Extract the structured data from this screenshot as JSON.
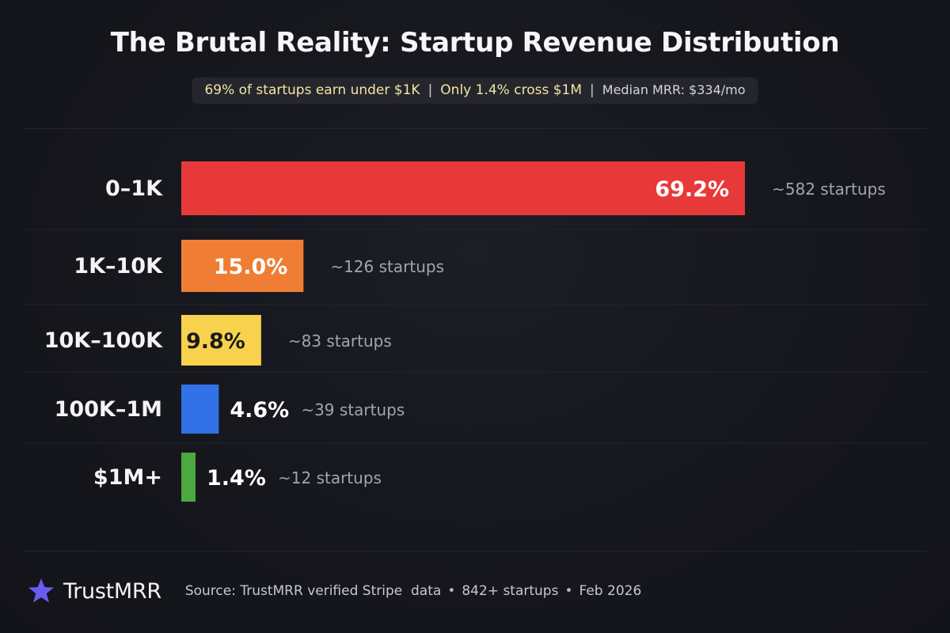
{
  "header": {
    "title": "The Brutal Reality: Startup Revenue Distribution",
    "stat_1": "69% of startups earn under $1K",
    "stat_2": "Only 1.4% cross $1M",
    "stat_3": "Median MRR: $334/mo",
    "separator": "|"
  },
  "chart_data": {
    "type": "bar",
    "orientation": "horizontal",
    "title": "The Brutal Reality: Startup Revenue Distribution",
    "xlabel": "",
    "ylabel": "",
    "xlim": [
      0,
      69.2
    ],
    "grid": false,
    "legend": "none",
    "categories": [
      "0–1K",
      "1K–10K",
      "10K–100K",
      "100K–1M",
      "$1M+"
    ],
    "values": [
      69.2,
      15.0,
      9.8,
      4.6,
      1.4
    ],
    "value_labels": [
      "69.2%",
      "15.0%",
      "9.8%",
      "4.6%",
      "1.4%"
    ],
    "count_labels": [
      "~582 startups",
      "~126 startups",
      "~83 startups",
      "~39 startups",
      "~12 startups"
    ],
    "colors": [
      "#e8393a",
      "#ef7d34",
      "#f8d24c",
      "#3271e8",
      "#4ca83f"
    ],
    "value_label_colors": [
      "#ffffff",
      "#ffffff",
      "#1a1a1a",
      "#ffffff",
      "#ffffff"
    ]
  },
  "footer": {
    "brand": "TrustMRR",
    "brand_color": "#6a5cf0",
    "logo_icon": "star-icon",
    "source_text": "Source: TrustMRR verified Stripe  data",
    "count_text": "842+ startups",
    "date_text": "Feb 2026",
    "bullet": "•"
  }
}
